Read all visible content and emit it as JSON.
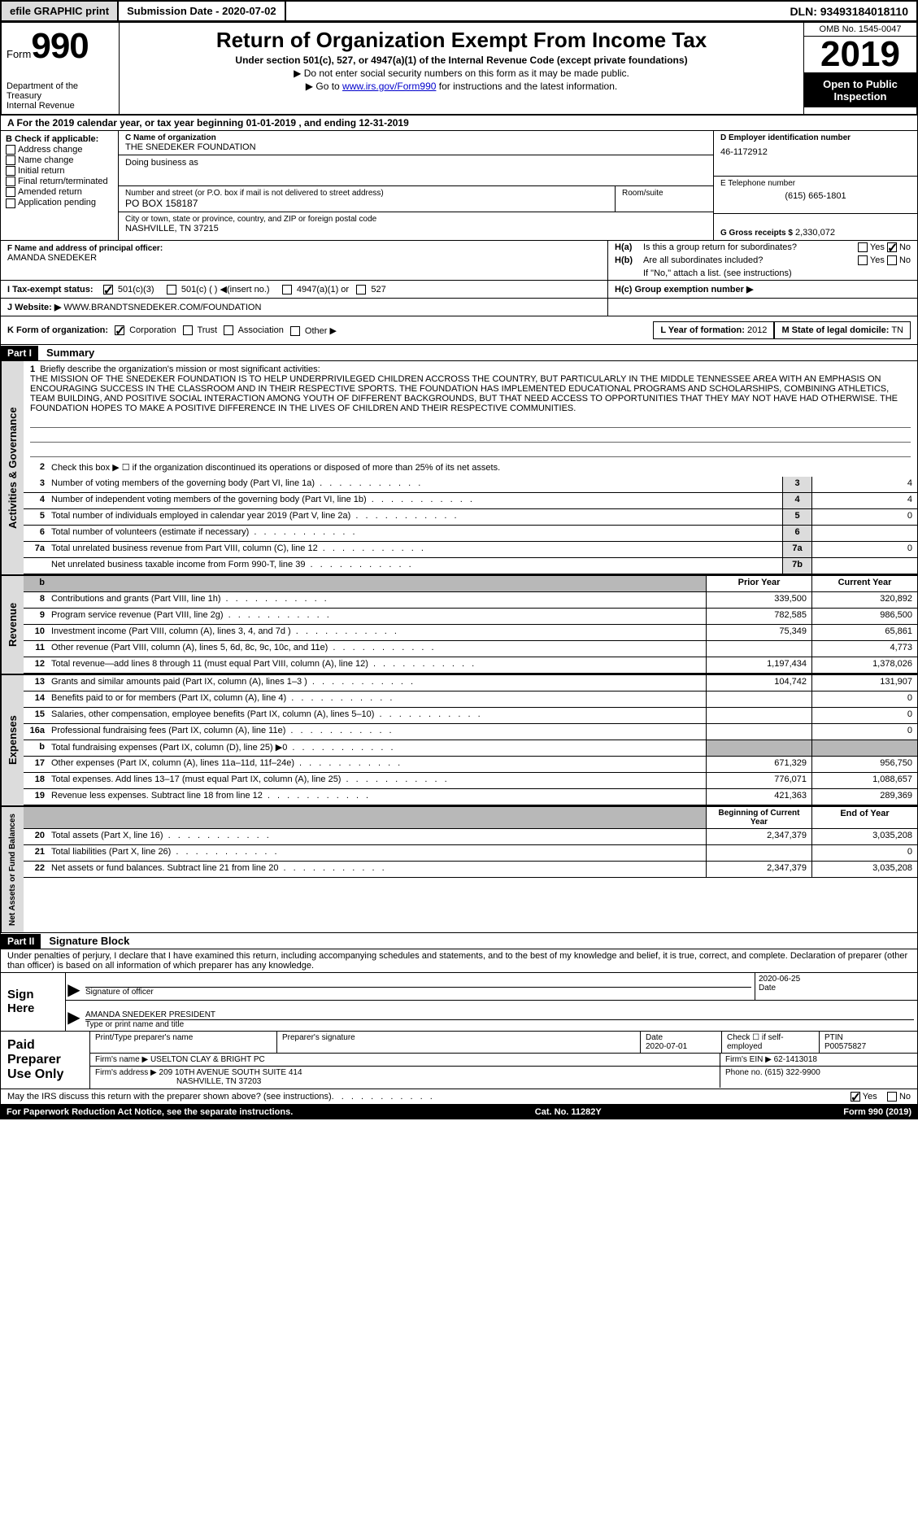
{
  "topbar": {
    "btn1": "efile GRAPHIC print",
    "btn2": "Submission Date - 2020-07-02",
    "dln": "DLN: 93493184018110"
  },
  "header": {
    "form_word": "Form",
    "form_num": "990",
    "dept": "Department of the Treasury\nInternal Revenue",
    "title": "Return of Organization Exempt From Income Tax",
    "subtitle": "Under section 501(c), 527, or 4947(a)(1) of the Internal Revenue Code (except private foundations)",
    "note1": "▶ Do not enter social security numbers on this form as it may be made public.",
    "note2_pre": "▶ Go to ",
    "note2_link": "www.irs.gov/Form990",
    "note2_post": " for instructions and the latest information.",
    "omb": "OMB No. 1545-0047",
    "year": "2019",
    "open": "Open to Public Inspection"
  },
  "row_a": "A  For the 2019 calendar year, or tax year beginning 01-01-2019    , and ending 12-31-2019",
  "col_b": {
    "label": "B Check if applicable:",
    "items": [
      "Address change",
      "Name change",
      "Initial return",
      "Final return/terminated",
      "Amended return",
      "Application pending"
    ]
  },
  "col_c": {
    "name_lbl": "C Name of organization",
    "name_val": "THE SNEDEKER FOUNDATION",
    "dba_lbl": "Doing business as",
    "dba_val": "",
    "addr_lbl": "Number and street (or P.O. box if mail is not delivered to street address)",
    "addr_val": "PO BOX 158187",
    "room_lbl": "Room/suite",
    "city_lbl": "City or town, state or province, country, and ZIP or foreign postal code",
    "city_val": "NASHVILLE, TN  37215",
    "officer_lbl": "F  Name and address of principal officer:",
    "officer_val": "AMANDA SNEDEKER"
  },
  "col_d": {
    "ein_lbl": "D Employer identification number",
    "ein_val": "46-1172912",
    "tel_lbl": "E Telephone number",
    "tel_val": "(615) 665-1801",
    "gross_lbl": "G Gross receipts $",
    "gross_val": "2,330,072"
  },
  "col_h": {
    "ha": "H(a)  Is this a group return for subordinates?",
    "hb": "H(b)  Are all subordinates included?",
    "hb_note": "If \"No,\" attach a list. (see instructions)",
    "hc": "H(c)  Group exemption number ▶",
    "yes": "Yes",
    "no": "No"
  },
  "row_i": {
    "lbl": "I    Tax-exempt status:",
    "opt1": "501(c)(3)",
    "opt2": "501(c) (  ) ◀(insert no.)",
    "opt3": "4947(a)(1) or",
    "opt4": "527"
  },
  "row_j": {
    "lbl": "J   Website: ▶",
    "val": "WWW.BRANDTSNEDEKER.COM/FOUNDATION"
  },
  "row_k": {
    "lbl": "K Form of organization:",
    "opt1": "Corporation",
    "opt2": "Trust",
    "opt3": "Association",
    "opt4": "Other ▶",
    "l_lbl": "L Year of formation:",
    "l_val": "2012",
    "m_lbl": "M State of legal domicile:",
    "m_val": "TN"
  },
  "part1": {
    "header": "Part I",
    "title": "Summary",
    "side1": "Activities & Governance",
    "side2": "Revenue",
    "side3": "Expenses",
    "side4": "Net Assets or Fund Balances",
    "line1_lbl": "1",
    "line1_txt": "Briefly describe the organization's mission or most significant activities:",
    "mission": "THE MISSION OF THE SNEDEKER FOUNDATION IS TO HELP UNDERPRIVILEGED CHILDREN ACCROSS THE COUNTRY, BUT PARTICULARLY IN THE MIDDLE TENNESSEE AREA WITH AN EMPHASIS ON ENCOURAGING SUCCESS IN THE CLASSROOM AND IN THEIR RESPECTIVE SPORTS. THE FOUNDATION HAS IMPLEMENTED EDUCATIONAL PROGRAMS AND SCHOLARSHIPS, COMBINING ATHLETICS, TEAM BUILDING, AND POSITIVE SOCIAL INTERACTION AMONG YOUTH OF DIFFERENT BACKGROUNDS, BUT THAT NEED ACCESS TO OPPORTUNITIES THAT THEY MAY NOT HAVE HAD OTHERWISE. THE FOUNDATION HOPES TO MAKE A POSITIVE DIFFERENCE IN THE LIVES OF CHILDREN AND THEIR RESPECTIVE COMMUNITIES.",
    "line2": "Check this box ▶ ☐  if the organization discontinued its operations or disposed of more than 25% of its net assets.",
    "rows_a": [
      {
        "n": "3",
        "d": "Number of voting members of the governing body (Part VI, line 1a)",
        "c": "3",
        "v": "4"
      },
      {
        "n": "4",
        "d": "Number of independent voting members of the governing body (Part VI, line 1b)",
        "c": "4",
        "v": "4"
      },
      {
        "n": "5",
        "d": "Total number of individuals employed in calendar year 2019 (Part V, line 2a)",
        "c": "5",
        "v": "0"
      },
      {
        "n": "6",
        "d": "Total number of volunteers (estimate if necessary)",
        "c": "6",
        "v": ""
      },
      {
        "n": "7a",
        "d": "Total unrelated business revenue from Part VIII, column (C), line 12",
        "c": "7a",
        "v": "0"
      },
      {
        "n": "",
        "d": "Net unrelated business taxable income from Form 990-T, line 39",
        "c": "7b",
        "v": ""
      }
    ],
    "col_prior": "Prior Year",
    "col_current": "Current Year",
    "rows_rev": [
      {
        "n": "8",
        "d": "Contributions and grants (Part VIII, line 1h)",
        "p": "339,500",
        "c": "320,892"
      },
      {
        "n": "9",
        "d": "Program service revenue (Part VIII, line 2g)",
        "p": "782,585",
        "c": "986,500"
      },
      {
        "n": "10",
        "d": "Investment income (Part VIII, column (A), lines 3, 4, and 7d )",
        "p": "75,349",
        "c": "65,861"
      },
      {
        "n": "11",
        "d": "Other revenue (Part VIII, column (A), lines 5, 6d, 8c, 9c, 10c, and 11e)",
        "p": "",
        "c": "4,773"
      },
      {
        "n": "12",
        "d": "Total revenue—add lines 8 through 11 (must equal Part VIII, column (A), line 12)",
        "p": "1,197,434",
        "c": "1,378,026"
      }
    ],
    "rows_exp": [
      {
        "n": "13",
        "d": "Grants and similar amounts paid (Part IX, column (A), lines 1–3 )",
        "p": "104,742",
        "c": "131,907"
      },
      {
        "n": "14",
        "d": "Benefits paid to or for members (Part IX, column (A), line 4)",
        "p": "",
        "c": "0"
      },
      {
        "n": "15",
        "d": "Salaries, other compensation, employee benefits (Part IX, column (A), lines 5–10)",
        "p": "",
        "c": "0"
      },
      {
        "n": "16a",
        "d": "Professional fundraising fees (Part IX, column (A), line 11e)",
        "p": "",
        "c": "0"
      },
      {
        "n": "b",
        "d": "Total fundraising expenses (Part IX, column (D), line 25) ▶0",
        "p": "gray",
        "c": "gray"
      },
      {
        "n": "17",
        "d": "Other expenses (Part IX, column (A), lines 11a–11d, 11f–24e)",
        "p": "671,329",
        "c": "956,750"
      },
      {
        "n": "18",
        "d": "Total expenses. Add lines 13–17 (must equal Part IX, column (A), line 25)",
        "p": "776,071",
        "c": "1,088,657"
      },
      {
        "n": "19",
        "d": "Revenue less expenses. Subtract line 18 from line 12",
        "p": "421,363",
        "c": "289,369"
      }
    ],
    "col_begin": "Beginning of Current Year",
    "col_end": "End of Year",
    "rows_net": [
      {
        "n": "20",
        "d": "Total assets (Part X, line 16)",
        "p": "2,347,379",
        "c": "3,035,208"
      },
      {
        "n": "21",
        "d": "Total liabilities (Part X, line 26)",
        "p": "",
        "c": "0"
      },
      {
        "n": "22",
        "d": "Net assets or fund balances. Subtract line 21 from line 20",
        "p": "2,347,379",
        "c": "3,035,208"
      }
    ]
  },
  "part2": {
    "header": "Part II",
    "title": "Signature Block",
    "text": "Under penalties of perjury, I declare that I have examined this return, including accompanying schedules and statements, and to the best of my knowledge and belief, it is true, correct, and complete. Declaration of preparer (other than officer) is based on all information of which preparer has any knowledge."
  },
  "sign": {
    "left": "Sign Here",
    "sig_lbl": "Signature of officer",
    "date_val": "2020-06-25",
    "date_lbl": "Date",
    "name_val": "AMANDA SNEDEKER PRESIDENT",
    "name_lbl": "Type or print name and title"
  },
  "prep": {
    "left": "Paid Preparer Use Only",
    "r1c1": "Print/Type preparer's name",
    "r1c2": "Preparer's signature",
    "r1c3_lbl": "Date",
    "r1c3_val": "2020-07-01",
    "r1c4": "Check ☐ if self-employed",
    "r1c5_lbl": "PTIN",
    "r1c5_val": "P00575827",
    "r2c1_lbl": "Firm's name    ▶",
    "r2c1_val": "USELTON CLAY & BRIGHT PC",
    "r2c2_lbl": "Firm's EIN ▶",
    "r2c2_val": "62-1413018",
    "r3c1_lbl": "Firm's address ▶",
    "r3c1_val": "209 10TH AVENUE SOUTH SUITE 414",
    "r3c1_val2": "NASHVILLE, TN  37203",
    "r3c2_lbl": "Phone no.",
    "r3c2_val": "(615) 322-9900"
  },
  "discuss": {
    "txt": "May the IRS discuss this return with the preparer shown above? (see instructions)",
    "yes": "Yes",
    "no": "No"
  },
  "footer": {
    "left": "For Paperwork Reduction Act Notice, see the separate instructions.",
    "center": "Cat. No. 11282Y",
    "right": "Form 990 (2019)"
  }
}
